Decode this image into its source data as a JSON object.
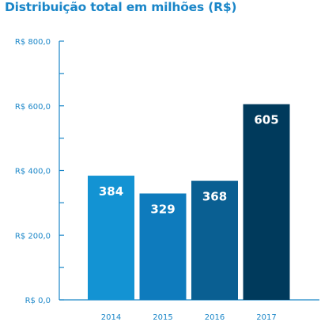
{
  "chart_data": {
    "type": "bar",
    "title": "Distribuição total em milhões (R$)",
    "categories": [
      "2014",
      "2015",
      "2016",
      "2017"
    ],
    "values": [
      384,
      329,
      368,
      605
    ],
    "data_labels": [
      "384",
      "329",
      "368",
      "605"
    ],
    "bar_colors": [
      "#1393d3",
      "#0e7bbd",
      "#0a5f92",
      "#003a5c"
    ],
    "ylim": [
      0,
      800
    ],
    "y_ticks": [
      0,
      200,
      400,
      600,
      800
    ],
    "y_tick_labels": [
      "R$ 0,0",
      "R$ 200,0",
      "R$ 400,0",
      "R$ 600,0",
      "R$ 800,0"
    ],
    "y_minor_step": 100,
    "xlabel": "",
    "ylabel": "",
    "grid": false,
    "axis_color": "#1a86c8"
  }
}
